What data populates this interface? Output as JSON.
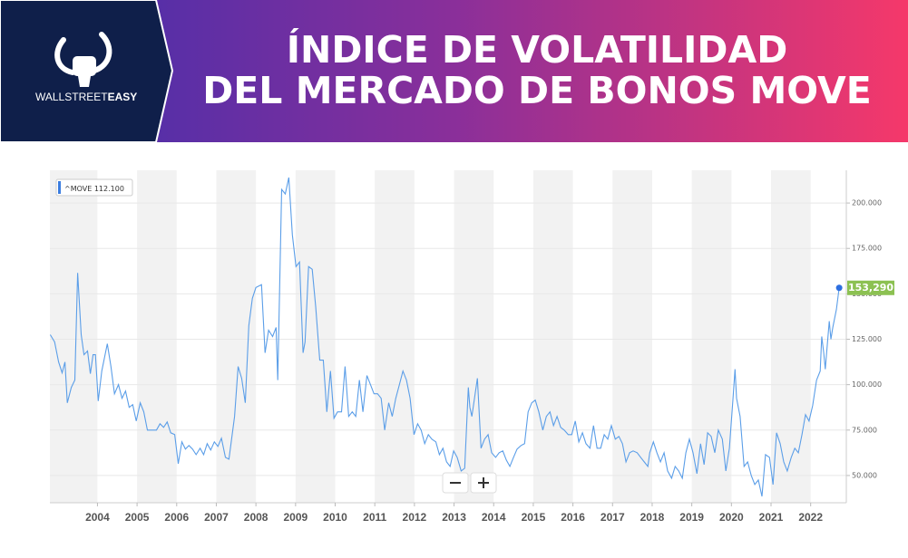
{
  "header": {
    "title_lines": [
      "ÍNDICE DE VOLATILIDAD",
      "DEL MERCADO DE BONOS MOVE"
    ],
    "brand": [
      "WALLSTREET",
      "EASY"
    ]
  },
  "chart_data": {
    "type": "line",
    "x": [
      2002.81,
      2002.92,
      2003.02,
      2003.11,
      2003.18,
      2003.24,
      2003.34,
      2003.43,
      2003.5,
      2003.59,
      2003.66,
      2003.75,
      2003.82,
      2003.89,
      2003.95,
      2004.02,
      2004.11,
      2004.25,
      2004.34,
      2004.43,
      2004.53,
      2004.62,
      2004.71,
      2004.8,
      2004.89,
      2004.98,
      2005.08,
      2005.17,
      2005.26,
      2005.35,
      2005.49,
      2005.58,
      2005.67,
      2005.76,
      2005.85,
      2005.95,
      2006.04,
      2006.13,
      2006.22,
      2006.31,
      2006.4,
      2006.49,
      2006.59,
      2006.68,
      2006.77,
      2006.86,
      2006.95,
      2007.04,
      2007.13,
      2007.23,
      2007.32,
      2007.46,
      2007.55,
      2007.64,
      2007.73,
      2007.82,
      2007.91,
      2008.0,
      2008.14,
      2008.23,
      2008.32,
      2008.42,
      2008.51,
      2008.55,
      2008.65,
      2008.74,
      2008.83,
      2008.92,
      2009.01,
      2009.1,
      2009.19,
      2009.24,
      2009.33,
      2009.42,
      2009.51,
      2009.61,
      2009.7,
      2009.79,
      2009.88,
      2009.97,
      2010.06,
      2010.16,
      2010.25,
      2010.34,
      2010.43,
      2010.52,
      2010.61,
      2010.7,
      2010.8,
      2010.89,
      2010.98,
      2011.07,
      2011.16,
      2011.25,
      2011.35,
      2011.44,
      2011.53,
      2011.62,
      2011.71,
      2011.8,
      2011.89,
      2011.99,
      2012.08,
      2012.17,
      2012.26,
      2012.35,
      2012.44,
      2012.54,
      2012.63,
      2012.72,
      2012.81,
      2012.9,
      2012.99,
      2013.08,
      2013.18,
      2013.27,
      2013.36,
      2013.4,
      2013.45,
      2013.59,
      2013.68,
      2013.77,
      2013.86,
      2013.95,
      2014.05,
      2014.14,
      2014.23,
      2014.32,
      2014.41,
      2014.5,
      2014.59,
      2014.69,
      2014.78,
      2014.87,
      2014.96,
      2015.05,
      2015.14,
      2015.24,
      2015.33,
      2015.42,
      2015.51,
      2015.6,
      2015.69,
      2015.78,
      2015.88,
      2015.97,
      2016.06,
      2016.15,
      2016.24,
      2016.33,
      2016.43,
      2016.52,
      2016.61,
      2016.7,
      2016.79,
      2016.88,
      2016.97,
      2017.07,
      2017.16,
      2017.25,
      2017.34,
      2017.43,
      2017.52,
      2017.62,
      2017.71,
      2017.8,
      2017.89,
      2017.94,
      2018.03,
      2018.12,
      2018.21,
      2018.3,
      2018.39,
      2018.49,
      2018.58,
      2018.67,
      2018.76,
      2018.85,
      2018.94,
      2019.03,
      2019.13,
      2019.22,
      2019.31,
      2019.4,
      2019.49,
      2019.58,
      2019.67,
      2019.77,
      2019.86,
      2019.95,
      2020.04,
      2020.09,
      2020.13,
      2020.22,
      2020.32,
      2020.41,
      2020.5,
      2020.59,
      2020.68,
      2020.77,
      2020.86,
      2020.96,
      2021.05,
      2021.14,
      2021.23,
      2021.32,
      2021.41,
      2021.51,
      2021.6,
      2021.69,
      2021.78,
      2021.87,
      2021.96,
      2022.05,
      2022.15,
      2022.24,
      2022.28,
      2022.33,
      2022.37,
      2022.47,
      2022.51,
      2022.56,
      2022.65,
      2022.72
    ],
    "series": [
      {
        "name": "^MOVE",
        "color": "#5b9ee8",
        "values": [
          127.5,
          123.5,
          112.5,
          106.5,
          112.5,
          90,
          98.5,
          102.5,
          161.5,
          127.5,
          116.5,
          118.5,
          106,
          116.5,
          116.5,
          91,
          107.5,
          122.5,
          110,
          95,
          100,
          92.5,
          96.5,
          87.5,
          89,
          80,
          90,
          85,
          75,
          75,
          75,
          78.5,
          76.5,
          79.5,
          73.5,
          72.5,
          56.5,
          68.5,
          64.5,
          66.5,
          64.5,
          61.5,
          65,
          61.5,
          67.5,
          64,
          68.5,
          66,
          70.5,
          60,
          59,
          82.5,
          110,
          103.5,
          90,
          132.5,
          147.5,
          153.5,
          155,
          117.5,
          130,
          126.5,
          131.5,
          102.5,
          207.5,
          205,
          214,
          182.5,
          165,
          167.5,
          117.5,
          123.5,
          165,
          163.5,
          142.5,
          113.5,
          113.5,
          85,
          107.5,
          81.5,
          85,
          85,
          110,
          82.5,
          85,
          82.5,
          102.5,
          85,
          105,
          100,
          95,
          95,
          92.5,
          75,
          90,
          82.5,
          92.5,
          100,
          107.5,
          102.5,
          92.5,
          72.5,
          78.5,
          75,
          67.5,
          72.5,
          70,
          68.5,
          61.5,
          65,
          57.5,
          55,
          63.5,
          60,
          52.5,
          54,
          98.5,
          87.5,
          82.5,
          103.5,
          65,
          70,
          72.5,
          62.5,
          60,
          62.5,
          63.5,
          58.5,
          55,
          60,
          64.5,
          66.5,
          67.5,
          85,
          90,
          91.5,
          85,
          75,
          82.5,
          85,
          77.5,
          82.5,
          76.5,
          75,
          72.5,
          72.5,
          80,
          68.5,
          73.5,
          67.5,
          65,
          77.5,
          65,
          65,
          72.5,
          70,
          77.5,
          70,
          71.5,
          67.5,
          57.5,
          62.5,
          63.5,
          62.5,
          60,
          57.5,
          55,
          62.5,
          68.5,
          62.5,
          57.5,
          62.5,
          52.5,
          48.5,
          55,
          52.5,
          48.5,
          62.5,
          70,
          62.5,
          51,
          67.5,
          56,
          73.5,
          71.5,
          62.5,
          75,
          70,
          52.5,
          65,
          92.5,
          108.5,
          92.5,
          82.5,
          55,
          57.5,
          50,
          45,
          47.5,
          38.5,
          61.5,
          60,
          45,
          73.5,
          67.5,
          57.5,
          52.5,
          60,
          65,
          62.5,
          72.5,
          83.5,
          80,
          88.5,
          102.5,
          107.5,
          126.5,
          117.5,
          108.5,
          135,
          125,
          131.5,
          141.5,
          153.29
        ]
      }
    ],
    "legend_value": "112.100",
    "last_value": {
      "value": 153.29,
      "label": "153,290",
      "color": "#8cc152"
    },
    "xlim": [
      2002.8,
      2022.9
    ],
    "xticks": [
      2004,
      2005,
      2006,
      2007,
      2008,
      2009,
      2010,
      2011,
      2012,
      2013,
      2014,
      2015,
      2016,
      2017,
      2018,
      2019,
      2020,
      2021,
      2022
    ],
    "ylim": [
      35,
      218
    ],
    "yticks": [
      {
        "value": 50,
        "label": "50.000"
      },
      {
        "value": 75,
        "label": "75.000"
      },
      {
        "value": 100,
        "label": "100.000"
      },
      {
        "value": 125,
        "label": "125.000"
      },
      {
        "value": 150,
        "label": "150.000"
      },
      {
        "value": 175,
        "label": "175.000"
      },
      {
        "value": 200,
        "label": "200.000"
      }
    ],
    "grid": true,
    "bands": true
  }
}
